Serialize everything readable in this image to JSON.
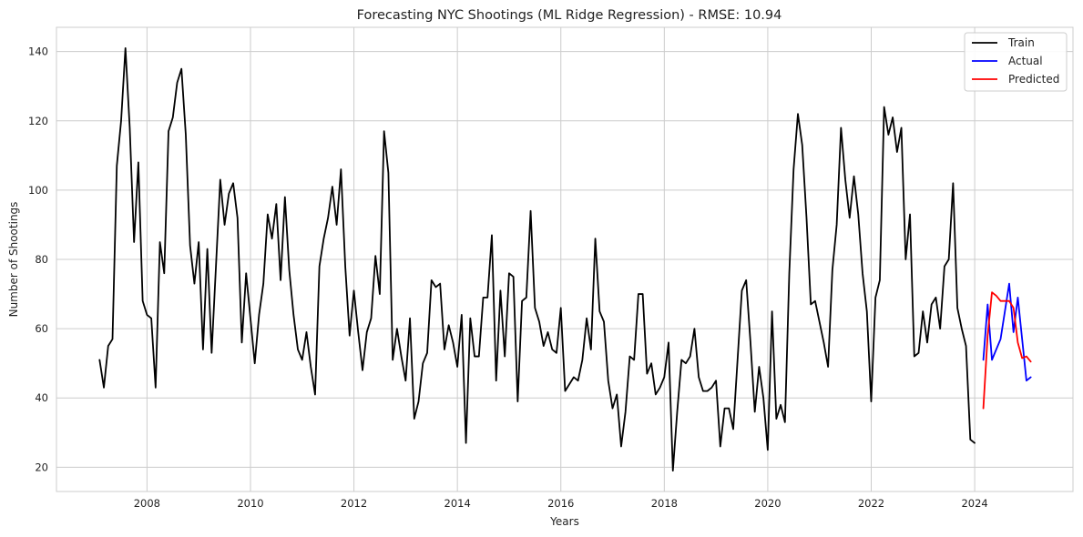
{
  "chart_data": {
    "type": "line",
    "title": "Forecasting NYC Shootings (ML Ridge Regression) - RMSE: 10.94",
    "xlabel": "Years",
    "ylabel": "Number of Shootings",
    "xlim": [
      2006.25,
      2025.9
    ],
    "ylim": [
      13,
      147
    ],
    "x_ticks": [
      2008,
      2010,
      2012,
      2014,
      2016,
      2018,
      2020,
      2022,
      2024
    ],
    "y_ticks": [
      20,
      40,
      60,
      80,
      100,
      120,
      140
    ],
    "grid": true,
    "legend_position": "top-right",
    "series": [
      {
        "name": "Train",
        "color": "#000000",
        "start_year": 2007.083,
        "step_years": 0.08333,
        "values": [
          51,
          43,
          55,
          57,
          107,
          120,
          141,
          118,
          85,
          108,
          68,
          64,
          63,
          43,
          85,
          76,
          117,
          121,
          131,
          135,
          116,
          84,
          73,
          85,
          54,
          83,
          53,
          78,
          103,
          90,
          99,
          102,
          92,
          56,
          76,
          63,
          50,
          64,
          73,
          93,
          86,
          96,
          74,
          98,
          77,
          64,
          54,
          51,
          59,
          49,
          41,
          78,
          86,
          92,
          101,
          90,
          106,
          78,
          58,
          71,
          59,
          48,
          59,
          63,
          81,
          70,
          117,
          105,
          51,
          60,
          52,
          45,
          63,
          34,
          39,
          50,
          53,
          74,
          72,
          73,
          54,
          61,
          56,
          49,
          64,
          27,
          63,
          52,
          52,
          69,
          69,
          87,
          45,
          71,
          52,
          76,
          75,
          39,
          68,
          69,
          94,
          66,
          62,
          55,
          59,
          54,
          53,
          66,
          42,
          44,
          46,
          45,
          51,
          63,
          54,
          86,
          65,
          62,
          45,
          37,
          41,
          26,
          36,
          52,
          51,
          70,
          70,
          47,
          50,
          41,
          43,
          46,
          56,
          19,
          36,
          51,
          50,
          52,
          60,
          46,
          42,
          42,
          43,
          45,
          26,
          37,
          37,
          31,
          51,
          71,
          74,
          56,
          36,
          49,
          40,
          25,
          65,
          34,
          38,
          33,
          76,
          106,
          122,
          113,
          92,
          67,
          68,
          62,
          56,
          49,
          77,
          90,
          118,
          103,
          92,
          104,
          93,
          76,
          65,
          39,
          69,
          74,
          124,
          116,
          121,
          111,
          118,
          80,
          93,
          52,
          53,
          65,
          56,
          67,
          69,
          60,
          78,
          80,
          102,
          66,
          60,
          55,
          28,
          27
        ]
      },
      {
        "name": "Actual",
        "color": "#0000ff",
        "start_year": 2024.167,
        "step_years": 0.08333,
        "values": [
          51,
          67,
          51,
          54,
          57,
          65,
          73,
          59,
          69,
          57,
          45,
          46
        ]
      },
      {
        "name": "Predicted",
        "color": "#ff0000",
        "start_year": 2024.167,
        "step_years": 0.08333,
        "values": [
          37,
          58,
          70.5,
          69.5,
          68,
          68,
          68,
          66,
          56,
          51.5,
          52,
          50.5
        ]
      }
    ]
  }
}
